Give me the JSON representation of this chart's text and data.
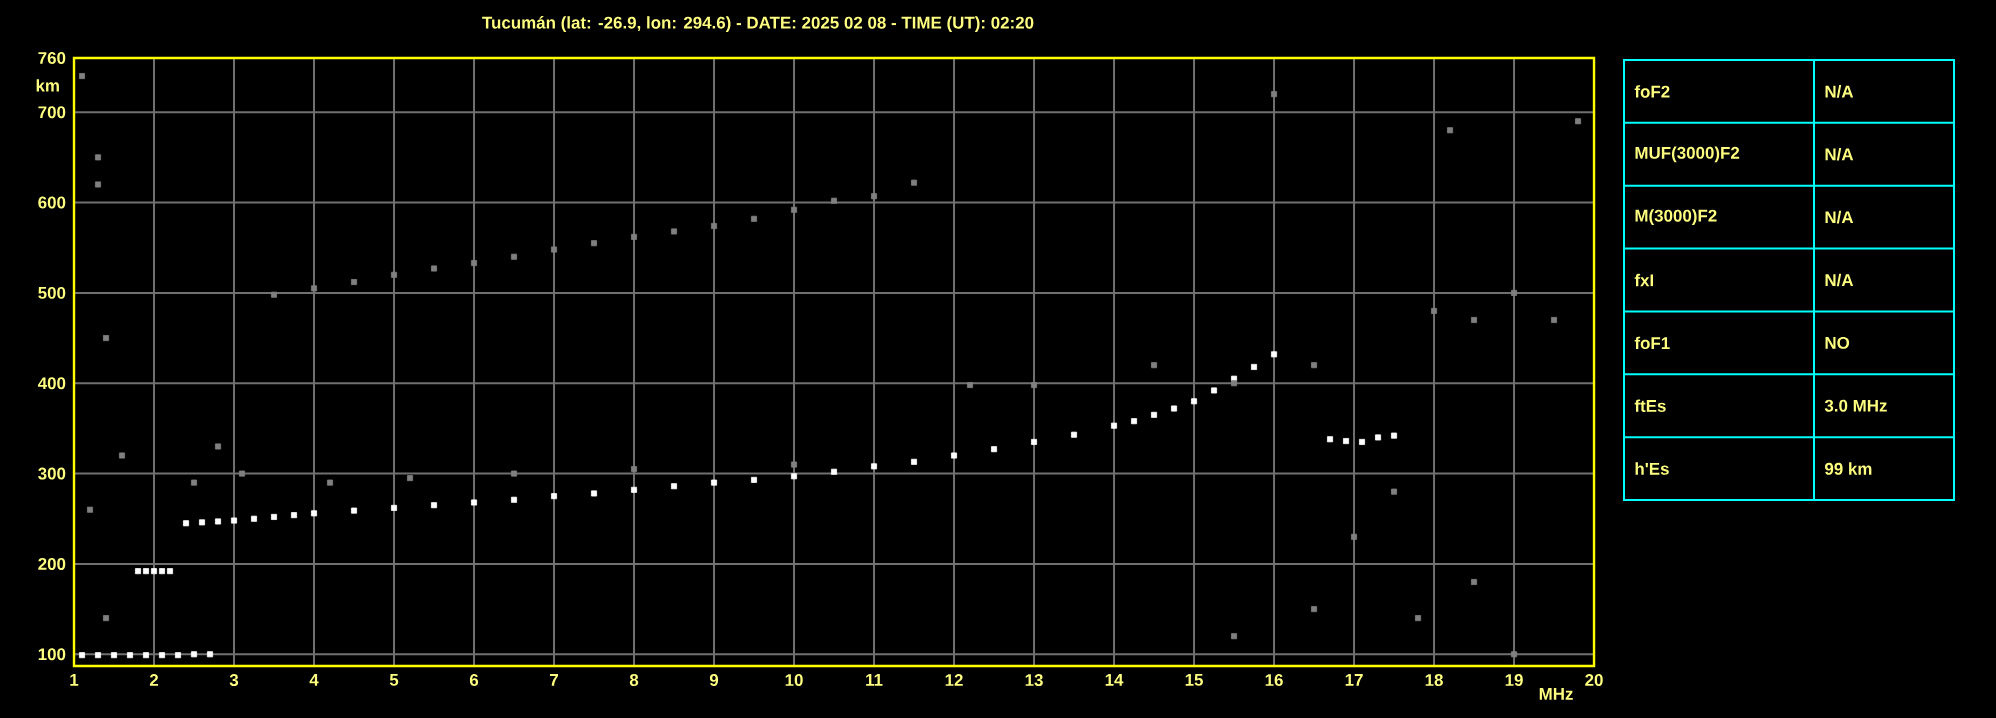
{
  "chart_data": [
    {
      "type": "scatter",
      "title": "Tucumán (lat: -26.9, lon: 294.6) - DATE: 2025 02 08 - TIME (UT): 02:20",
      "xlabel": "MHz",
      "ylabel": "km",
      "xlim": [
        1,
        20
      ],
      "ylim": [
        87,
        760
      ],
      "xticks": [
        1,
        2,
        3,
        4,
        5,
        6,
        7,
        8,
        9,
        10,
        11,
        12,
        13,
        14,
        15,
        16,
        17,
        18,
        19,
        20
      ],
      "yticks": [
        100,
        200,
        300,
        400,
        500,
        600,
        700,
        760
      ],
      "grid": true,
      "marker": "square",
      "series": [
        {
          "color": "#ffffff",
          "x": [
            2.4,
            2.6,
            2.8,
            3.0,
            3.25,
            3.5,
            3.75,
            4,
            4.5,
            5,
            5.5,
            6,
            6.5,
            7,
            7.5,
            8,
            8.5,
            9,
            9.5,
            10,
            10.5,
            11,
            11.5,
            12,
            12.5,
            13,
            13.5,
            14,
            14.25,
            14.5,
            14.75,
            15,
            15.25,
            15.5,
            15.75,
            16,
            1.1,
            1.3,
            1.5,
            1.7,
            1.9,
            2.1,
            2.3,
            2.5,
            2.7,
            1.8,
            1.9,
            2.0,
            2.1,
            2.2,
            16.7,
            16.9,
            17.1,
            17.3,
            17.5
          ],
          "values": [
            245,
            246,
            247,
            248,
            250,
            252,
            254,
            256,
            259,
            262,
            265,
            268,
            271,
            275,
            278,
            282,
            286,
            290,
            293,
            297,
            302,
            308,
            313,
            320,
            327,
            335,
            343,
            353,
            358,
            365,
            372,
            380,
            392,
            405,
            418,
            432,
            99,
            99,
            99,
            99,
            99,
            99,
            99,
            100,
            100,
            192,
            192,
            192,
            192,
            192,
            338,
            336,
            335,
            340,
            342
          ]
        },
        {
          "color": "#808080",
          "x": [
            3.5,
            4,
            4.5,
            5,
            5.5,
            6,
            6.5,
            7,
            7.5,
            8,
            8.5,
            9,
            9.5,
            10,
            10.5,
            11,
            11.5,
            1.1,
            1.3,
            1.3,
            1.4,
            1.2,
            1.4,
            2.8,
            3.1,
            4.2,
            5.2,
            6.5,
            8,
            10,
            12.2,
            13,
            14.5,
            15.5,
            16.5,
            17.5,
            18,
            18.5,
            19,
            19.5,
            19.8,
            18.2,
            16,
            17,
            18.5,
            16.5,
            19,
            15.5,
            17.8,
            1.6,
            2.5
          ],
          "values": [
            498,
            505,
            512,
            520,
            527,
            533,
            540,
            548,
            555,
            562,
            568,
            574,
            582,
            592,
            602,
            607,
            622,
            740,
            650,
            620,
            450,
            260,
            140,
            330,
            300,
            290,
            295,
            300,
            305,
            310,
            398,
            398,
            420,
            400,
            420,
            280,
            480,
            470,
            500,
            470,
            690,
            680,
            720,
            230,
            180,
            150,
            100,
            120,
            140,
            320,
            290
          ]
        }
      ]
    },
    {
      "type": "other",
      "annotations": [
        "foF2",
        "N/A",
        "MUF(3000)F2",
        "N/A",
        "M(3000)F2",
        "N/A",
        "fxI",
        "N/A",
        "foF1",
        "NO",
        "ftEs",
        "3.0 MHz",
        "h'Es",
        "99 km"
      ]
    }
  ]
}
